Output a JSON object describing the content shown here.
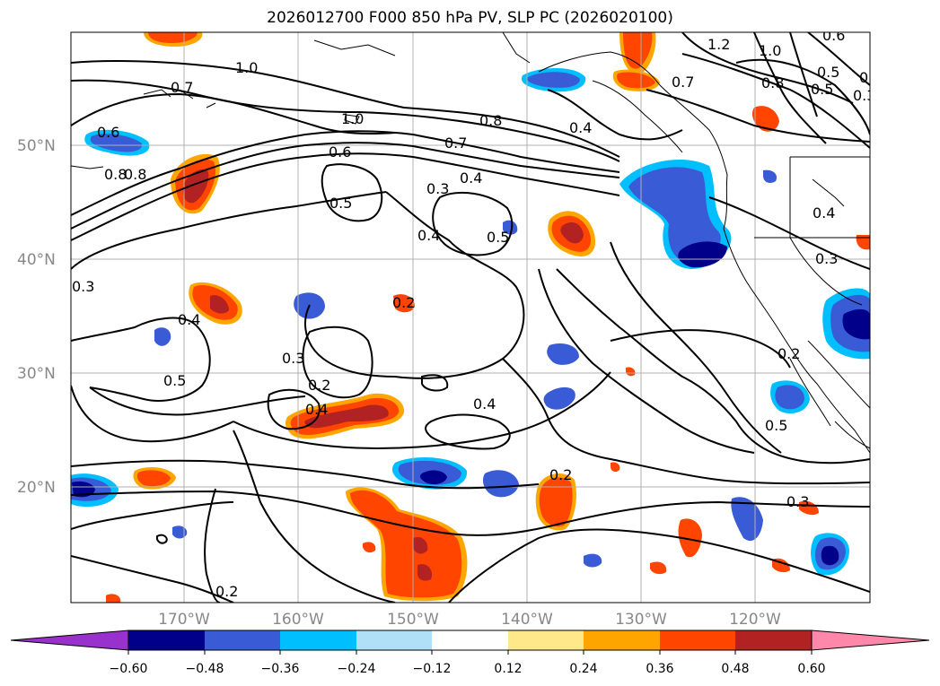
{
  "title": "2026012700 F000 850 hPa PV, SLP PC (2026020100)",
  "lat_labels": [
    "50°N",
    "40°N",
    "30°N",
    "20°N"
  ],
  "lon_labels": [
    "170°W",
    "160°W",
    "150°W",
    "140°W",
    "130°W",
    "120°W"
  ],
  "colorbar": {
    "colors": [
      "#9932cc",
      "#00008b",
      "#3a5bd6",
      "#00bfff",
      "#b0e0f8",
      "#ffffff",
      "#ffe88a",
      "#ffa500",
      "#ff4500",
      "#b22222",
      "#ff88aa"
    ],
    "tick_labels": [
      "−0.60",
      "−0.48",
      "−0.36",
      "−0.24",
      "−0.12",
      "0.12",
      "0.24",
      "0.36",
      "0.48",
      "0.60"
    ]
  },
  "contour_labels": [
    "1.0",
    "0.7",
    "1.2",
    "1.0",
    "0.5",
    "0.3",
    "0.6",
    "0.8",
    "1.0",
    "0.6",
    "0.7",
    "0.8",
    "0.4",
    "0.3",
    "0.4",
    "0.5",
    "0.4",
    "0.5",
    "0.3",
    "0.3",
    "0.2",
    "0.4",
    "0.5",
    "0.3",
    "0.2",
    "0.4",
    "0.4",
    "0.2",
    "0.5",
    "0.3",
    "0.2",
    "0.2",
    "0.4",
    "0.7",
    "0.8",
    "0.6",
    "0.8",
    "0.5",
    "0.3"
  ]
}
